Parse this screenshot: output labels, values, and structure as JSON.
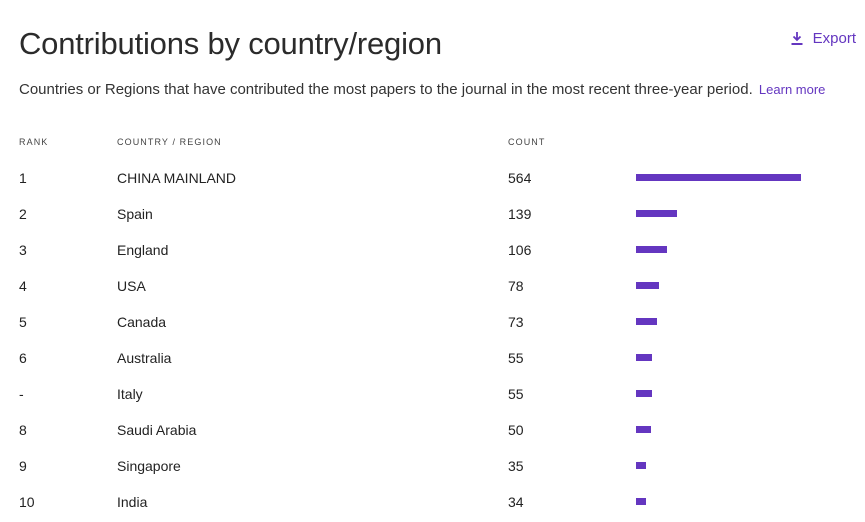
{
  "header": {
    "title": "Contributions by country/region",
    "export_label": "Export",
    "description": "Countries or Regions that have contributed the most papers to the journal in the most recent three-year period.",
    "learn_more": "Learn more"
  },
  "columns": {
    "rank": "RANK",
    "country": "COUNTRY / REGION",
    "count": "COUNT"
  },
  "accent_color": "#6436c0",
  "max_count": 564,
  "rows": [
    {
      "rank": "1",
      "country": "CHINA MAINLAND",
      "count": "564"
    },
    {
      "rank": "2",
      "country": "Spain",
      "count": "139"
    },
    {
      "rank": "3",
      "country": "England",
      "count": "106"
    },
    {
      "rank": "4",
      "country": "USA",
      "count": "78"
    },
    {
      "rank": "5",
      "country": "Canada",
      "count": "73"
    },
    {
      "rank": "6",
      "country": "Australia",
      "count": "55"
    },
    {
      "rank": "-",
      "country": "Italy",
      "count": "55"
    },
    {
      "rank": "8",
      "country": "Saudi Arabia",
      "count": "50"
    },
    {
      "rank": "9",
      "country": "Singapore",
      "count": "35"
    },
    {
      "rank": "10",
      "country": "India",
      "count": "34"
    }
  ]
}
